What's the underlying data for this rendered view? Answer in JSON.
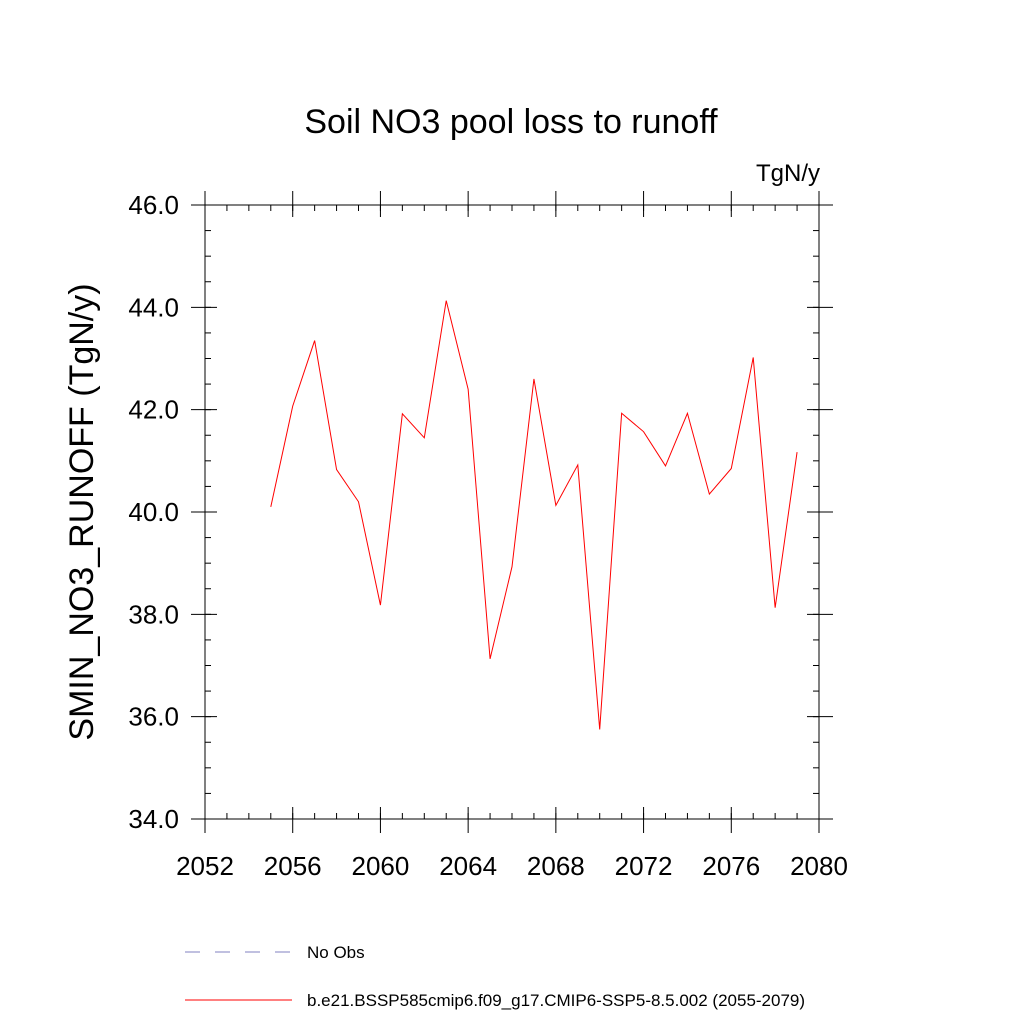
{
  "chart_data": {
    "type": "line",
    "title": "Soil NO3 pool loss to runoff",
    "units": "TgN/y",
    "ylabel": "SMIN_NO3_RUNOFF  (TgN/y)",
    "xlabel": "",
    "xlim": [
      2052,
      2080
    ],
    "ylim": [
      34.0,
      46.0
    ],
    "x_ticks": [
      "2052",
      "2056",
      "2060",
      "2064",
      "2068",
      "2072",
      "2076",
      "2080"
    ],
    "y_ticks": [
      "34.0",
      "36.0",
      "38.0",
      "40.0",
      "42.0",
      "44.0",
      "46.0"
    ],
    "grid": false,
    "legend_position": "bottom",
    "colors": {
      "model": "#ff0000",
      "obs": "#8080c0",
      "axis": "#000000"
    },
    "series": [
      {
        "name": "b.e21.BSSP585cmip6.f09_g17.CMIP6-SSP5-8.5.002 (2055-2079)",
        "x": [
          2055,
          2056,
          2057,
          2058,
          2059,
          2060,
          2061,
          2062,
          2063,
          2064,
          2065,
          2066,
          2067,
          2068,
          2069,
          2070,
          2071,
          2072,
          2073,
          2074,
          2075,
          2076,
          2077,
          2078,
          2079
        ],
        "values": [
          40.1,
          42.07,
          43.35,
          40.83,
          40.2,
          38.18,
          41.92,
          41.45,
          44.13,
          42.4,
          37.13,
          38.93,
          42.6,
          40.13,
          40.92,
          35.75,
          41.93,
          41.57,
          40.9,
          41.93,
          40.35,
          40.85,
          43.02,
          38.13,
          41.17
        ]
      }
    ],
    "legend": [
      {
        "label": "No Obs",
        "style": "dashed",
        "color_key": "obs"
      },
      {
        "label": "b.e21.BSSP585cmip6.f09_g17.CMIP6-SSP5-8.5.002 (2055-2079)",
        "style": "solid",
        "color_key": "model"
      }
    ]
  }
}
